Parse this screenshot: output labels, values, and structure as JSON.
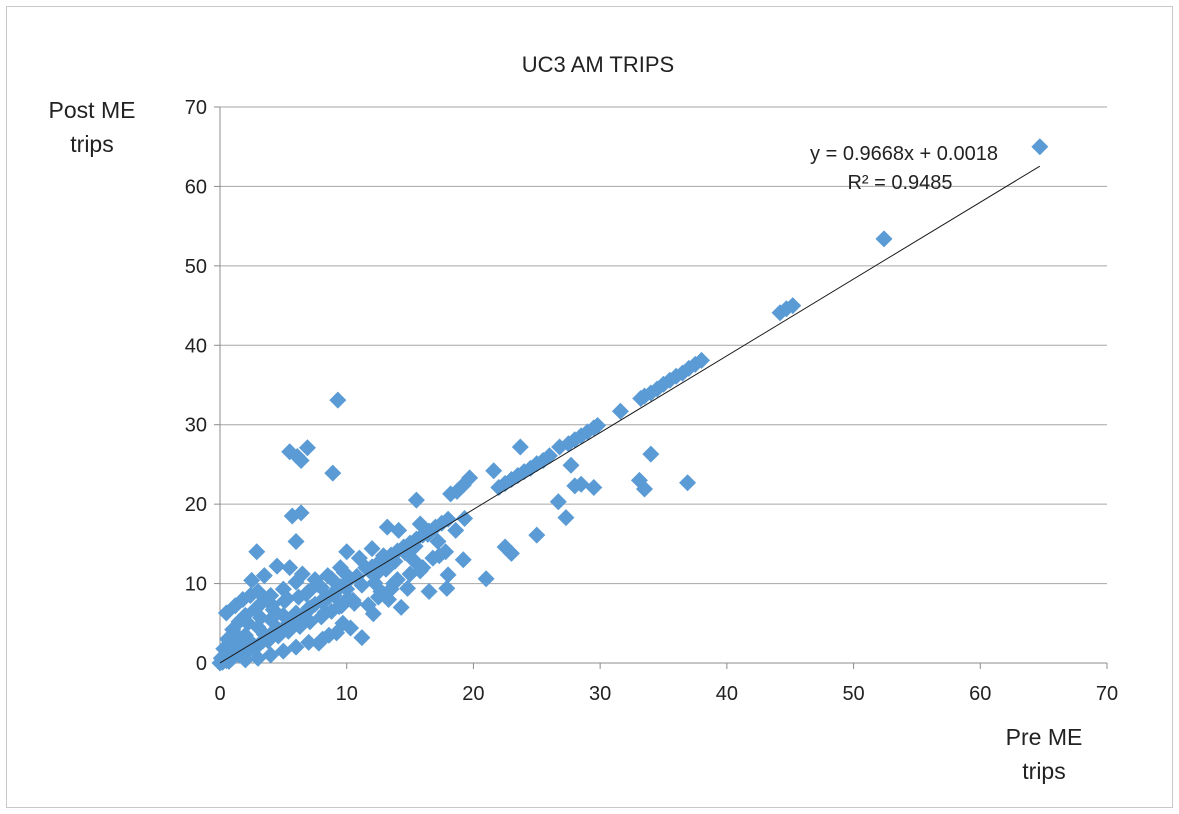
{
  "chart_data": {
    "type": "scatter",
    "title": "UC3 AM TRIPS",
    "xlabel_lines": [
      "Pre ME",
      "trips"
    ],
    "ylabel_lines": [
      "Post ME",
      "trips"
    ],
    "xlim": [
      0,
      70
    ],
    "ylim": [
      0,
      70
    ],
    "xticks": [
      0,
      10,
      20,
      30,
      40,
      50,
      60,
      70
    ],
    "yticks": [
      0,
      10,
      20,
      30,
      40,
      50,
      60,
      70
    ],
    "grid": "horizontal",
    "marker": "diamond",
    "marker_color": "#5B9BD5",
    "trendline": {
      "type": "linear",
      "slope": 0.9668,
      "intercept": 0.0018,
      "x_range": [
        0,
        64.7
      ],
      "equation_label": "y = 0.9668x + 0.0018",
      "r2_label": "R² = 0.9485",
      "color": "#1a1a1a"
    },
    "points": [
      [
        64.7,
        65.0
      ],
      [
        52.4,
        53.4
      ],
      [
        44.2,
        44.1
      ],
      [
        44.7,
        44.6
      ],
      [
        45.2,
        45.0
      ],
      [
        38.0,
        38.1
      ],
      [
        37.5,
        37.6
      ],
      [
        37.0,
        37.1
      ],
      [
        36.5,
        36.5
      ],
      [
        36.0,
        36.1
      ],
      [
        35.5,
        35.6
      ],
      [
        35.0,
        35.1
      ],
      [
        34.5,
        34.5
      ],
      [
        34.0,
        34.0
      ],
      [
        33.5,
        33.6
      ],
      [
        33.2,
        33.3
      ],
      [
        31.6,
        31.7
      ],
      [
        29.8,
        29.9
      ],
      [
        29.5,
        29.6
      ],
      [
        29.0,
        29.1
      ],
      [
        28.5,
        28.6
      ],
      [
        28.0,
        28.1
      ],
      [
        27.5,
        27.6
      ],
      [
        26.8,
        27.2
      ],
      [
        26.0,
        26.1
      ],
      [
        25.5,
        25.5
      ],
      [
        25.0,
        25.1
      ],
      [
        24.5,
        24.5
      ],
      [
        24.0,
        24.1
      ],
      [
        23.5,
        23.6
      ],
      [
        23.0,
        23.1
      ],
      [
        22.5,
        22.6
      ],
      [
        22.0,
        22.1
      ],
      [
        23.7,
        27.2
      ],
      [
        21.6,
        24.2
      ],
      [
        19.7,
        23.3
      ],
      [
        19.2,
        22.4
      ],
      [
        18.7,
        21.6
      ],
      [
        18.2,
        21.3
      ],
      [
        9.3,
        33.1
      ],
      [
        5.5,
        26.6
      ],
      [
        6.1,
        26.0
      ],
      [
        6.4,
        25.5
      ],
      [
        6.9,
        27.1
      ],
      [
        8.9,
        23.9
      ],
      [
        5.7,
        18.5
      ],
      [
        6.4,
        18.9
      ],
      [
        6.0,
        15.3
      ],
      [
        2.9,
        14.0
      ],
      [
        15.5,
        20.5
      ],
      [
        18.0,
        18.1
      ],
      [
        17.5,
        17.6
      ],
      [
        17.0,
        17.1
      ],
      [
        16.5,
        16.6
      ],
      [
        16.0,
        16.1
      ],
      [
        15.5,
        15.6
      ],
      [
        15.0,
        15.1
      ],
      [
        14.5,
        14.6
      ],
      [
        14.0,
        14.1
      ],
      [
        13.5,
        13.6
      ],
      [
        13.0,
        13.1
      ],
      [
        12.5,
        12.6
      ],
      [
        12.0,
        12.1
      ],
      [
        13.2,
        17.1
      ],
      [
        14.1,
        16.7
      ],
      [
        15.8,
        17.5
      ],
      [
        16.4,
        16.2
      ],
      [
        17.2,
        15.3
      ],
      [
        17.8,
        14.0
      ],
      [
        18.6,
        16.7
      ],
      [
        19.3,
        18.2
      ],
      [
        19.2,
        13.0
      ],
      [
        18.0,
        11.1
      ],
      [
        17.3,
        13.5
      ],
      [
        16.0,
        12.0
      ],
      [
        15.0,
        11.2
      ],
      [
        14.3,
        7.0
      ],
      [
        16.5,
        9.0
      ],
      [
        17.9,
        9.4
      ],
      [
        21.0,
        10.6
      ],
      [
        22.5,
        14.6
      ],
      [
        23.0,
        13.8
      ],
      [
        25.0,
        16.1
      ],
      [
        26.7,
        20.3
      ],
      [
        27.3,
        18.3
      ],
      [
        28.0,
        22.3
      ],
      [
        28.5,
        22.5
      ],
      [
        29.5,
        22.1
      ],
      [
        27.7,
        24.9
      ],
      [
        33.1,
        23.0
      ],
      [
        33.5,
        21.9
      ],
      [
        34.0,
        26.3
      ],
      [
        36.9,
        22.7
      ],
      [
        11.2,
        3.2
      ],
      [
        12.1,
        6.2
      ],
      [
        10.6,
        7.5
      ],
      [
        9.7,
        5.0
      ],
      [
        8.6,
        3.5
      ],
      [
        7.8,
        2.5
      ],
      [
        9.0,
        8.9
      ],
      [
        10.2,
        10.5
      ],
      [
        11.5,
        12.0
      ],
      [
        12.4,
        11.3
      ],
      [
        10.0,
        14.0
      ],
      [
        11.0,
        13.2
      ],
      [
        12.0,
        14.4
      ],
      [
        13.7,
        10.0
      ],
      [
        14.8,
        9.4
      ],
      [
        15.3,
        12.9
      ],
      [
        13.3,
        8.0
      ],
      [
        12.7,
        9.0
      ],
      [
        9.5,
        12.0
      ],
      [
        8.5,
        11.0
      ],
      [
        7.5,
        10.5
      ],
      [
        6.5,
        11.2
      ],
      [
        5.5,
        12.0
      ],
      [
        4.5,
        12.2
      ],
      [
        3.5,
        11.0
      ],
      [
        2.5,
        10.4
      ],
      [
        3.0,
        9.0
      ],
      [
        4.0,
        8.5
      ],
      [
        5.0,
        9.3
      ],
      [
        6.0,
        10.2
      ],
      [
        7.0,
        9.0
      ],
      [
        8.0,
        9.5
      ],
      [
        2.8,
        6.8
      ],
      [
        2.0,
        6.0
      ],
      [
        1.5,
        5.2
      ],
      [
        1.0,
        4.2
      ],
      [
        0.6,
        3.0
      ],
      [
        0.3,
        1.8
      ],
      [
        0.1,
        0.6
      ],
      [
        0.0,
        0.0
      ],
      [
        0.2,
        0.1
      ],
      [
        0.5,
        0.3
      ],
      [
        0.9,
        0.5
      ],
      [
        0.5,
        6.3
      ],
      [
        1.2,
        7.2
      ],
      [
        1.8,
        8.0
      ],
      [
        2.4,
        8.5
      ],
      [
        3.3,
        7.6
      ],
      [
        4.2,
        6.7
      ],
      [
        5.1,
        7.8
      ],
      [
        6.2,
        8.3
      ],
      [
        7.2,
        7.0
      ],
      [
        8.3,
        6.4
      ],
      [
        9.4,
        7.1
      ],
      [
        10.1,
        8.1
      ],
      [
        1.5,
        1.0
      ],
      [
        2.2,
        1.5
      ],
      [
        3.0,
        2.2
      ],
      [
        3.8,
        2.8
      ],
      [
        4.6,
        3.4
      ],
      [
        5.4,
        4.0
      ],
      [
        6.3,
        4.6
      ],
      [
        7.1,
        5.2
      ],
      [
        8.0,
        5.8
      ],
      [
        8.8,
        6.5
      ],
      [
        9.6,
        7.2
      ],
      [
        10.5,
        7.9
      ],
      [
        2.0,
        0.4
      ],
      [
        3.0,
        0.6
      ],
      [
        4.0,
        1.0
      ],
      [
        5.0,
        1.5
      ],
      [
        6.0,
        2.0
      ],
      [
        7.0,
        2.6
      ],
      [
        8.1,
        3.0
      ],
      [
        9.2,
        3.8
      ],
      [
        10.3,
        4.4
      ],
      [
        1.0,
        2.5
      ],
      [
        2.0,
        3.5
      ],
      [
        3.0,
        4.5
      ],
      [
        4.0,
        5.5
      ],
      [
        5.0,
        6.0
      ],
      [
        6.0,
        6.3
      ],
      [
        7.0,
        6.9
      ],
      [
        8.0,
        7.8
      ],
      [
        9.0,
        8.5
      ],
      [
        10.0,
        9.3
      ],
      [
        1.5,
        3.2
      ],
      [
        2.5,
        2.5
      ],
      [
        3.5,
        3.6
      ],
      [
        4.5,
        4.4
      ],
      [
        5.5,
        5.3
      ],
      [
        6.5,
        5.9
      ],
      [
        7.5,
        7.4
      ],
      [
        8.5,
        8.2
      ],
      [
        9.5,
        9.6
      ],
      [
        10.8,
        10.9
      ],
      [
        11.8,
        11.6
      ],
      [
        0.4,
        1.0
      ],
      [
        0.8,
        1.6
      ],
      [
        1.2,
        2.0
      ],
      [
        1.6,
        2.4
      ],
      [
        0.7,
        0.2
      ],
      [
        1.1,
        0.8
      ],
      [
        1.9,
        1.3
      ],
      [
        2.6,
        1.9
      ],
      [
        3.4,
        2.8
      ],
      [
        4.2,
        3.9
      ],
      [
        5.2,
        4.7
      ],
      [
        2.2,
        5.0
      ],
      [
        3.2,
        5.7
      ],
      [
        4.1,
        7.3
      ],
      [
        5.3,
        8.1
      ],
      [
        6.8,
        8.7
      ],
      [
        7.7,
        9.9
      ],
      [
        8.8,
        10.6
      ],
      [
        9.8,
        11.4
      ],
      [
        11.2,
        9.8
      ],
      [
        12.2,
        10.1
      ],
      [
        13.1,
        11.8
      ],
      [
        12.9,
        13.5
      ],
      [
        13.8,
        12.8
      ],
      [
        14.6,
        13.9
      ],
      [
        15.4,
        14.7
      ],
      [
        11.7,
        7.3
      ],
      [
        12.5,
        8.3
      ],
      [
        13.5,
        9.3
      ],
      [
        14.0,
        10.5
      ],
      [
        15.8,
        11.6
      ],
      [
        16.8,
        13.2
      ]
    ]
  }
}
